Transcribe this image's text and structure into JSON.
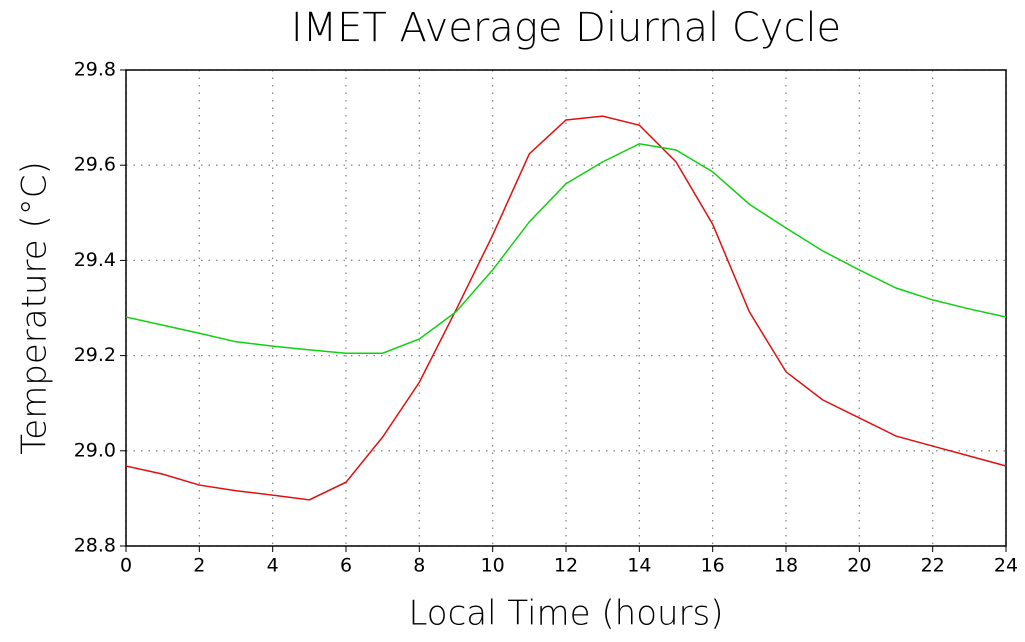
{
  "chart_data": {
    "type": "line",
    "title": "IMET Average Diurnal Cycle",
    "x_label": "Local Time (hours)",
    "y_label": "Temperature (°C)",
    "x": [
      0,
      1,
      2,
      3,
      4,
      5,
      6,
      7,
      8,
      9,
      10,
      11,
      12,
      13,
      14,
      15,
      16,
      17,
      18,
      19,
      20,
      21,
      22,
      23,
      24
    ],
    "series": [
      {
        "color": "#e01010",
        "values": [
          28.968,
          28.951,
          28.928,
          28.916,
          28.907,
          28.897,
          28.934,
          29.029,
          29.144,
          29.296,
          29.453,
          29.624,
          29.695,
          29.703,
          29.684,
          29.607,
          29.476,
          29.292,
          29.166,
          29.107,
          29.069,
          29.031,
          29.01,
          28.989,
          28.968
        ]
      },
      {
        "color": "#10d010",
        "values": [
          29.281,
          29.264,
          29.247,
          29.229,
          29.22,
          29.212,
          29.205,
          29.205,
          29.235,
          29.292,
          29.38,
          29.481,
          29.561,
          29.607,
          29.645,
          29.632,
          29.586,
          29.518,
          29.468,
          29.42,
          29.38,
          29.342,
          29.317,
          29.298,
          29.281
        ]
      }
    ],
    "xlim": [
      0,
      24
    ],
    "xticks": [
      0,
      2,
      4,
      6,
      8,
      10,
      12,
      14,
      16,
      18,
      20,
      22,
      24
    ],
    "ylim": [
      28.8,
      29.8
    ],
    "yticks": [
      {
        "value": 28.8,
        "label": "28.8"
      },
      {
        "value": 29.0,
        "label": "29.0"
      },
      {
        "value": 29.2,
        "label": "29.2"
      },
      {
        "value": 29.4,
        "label": "29.4"
      },
      {
        "value": 29.6,
        "label": "29.6"
      },
      {
        "value": 29.8,
        "label": "29.8"
      }
    ],
    "grid": true
  }
}
